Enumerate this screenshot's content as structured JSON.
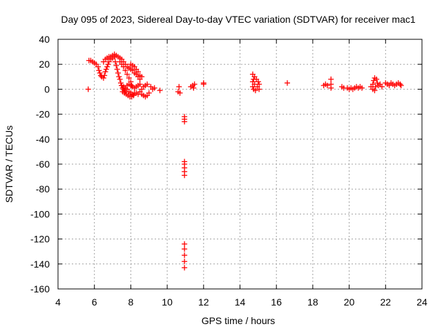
{
  "chart_data": {
    "type": "scatter",
    "title": "Day 095 of 2023, Sidereal Day-to-day VTEC variation (SDTVAR) for receiver mac1",
    "xlabel": "GPS time / hours",
    "ylabel": "SDTVAR / TECUs",
    "xlim": [
      4,
      24
    ],
    "ylim": [
      -160,
      40
    ],
    "xticks": [
      4,
      6,
      8,
      10,
      12,
      14,
      16,
      18,
      20,
      22,
      24
    ],
    "yticks": [
      40,
      20,
      0,
      -20,
      -40,
      -60,
      -80,
      -100,
      -120,
      -140,
      -160
    ],
    "xtick_labels": [
      "4",
      "6",
      "8",
      "10",
      "12",
      "14",
      "16",
      "18",
      "20",
      "22",
      "24"
    ],
    "ytick_labels": [
      "40",
      "20",
      "0",
      "-20",
      "-40",
      "-60",
      "-80",
      "-100",
      "-120",
      "-140",
      "-160"
    ],
    "grid": true,
    "marker": "+",
    "color": "#ff0000",
    "series": [
      {
        "name": "SDTVAR",
        "points": [
          [
            5.66,
            0
          ],
          [
            5.7,
            23
          ],
          [
            5.8,
            23
          ],
          [
            5.9,
            22
          ],
          [
            6.0,
            21
          ],
          [
            6.1,
            20
          ],
          [
            6.2,
            18
          ],
          [
            6.25,
            15
          ],
          [
            6.3,
            13
          ],
          [
            6.35,
            11
          ],
          [
            6.4,
            10
          ],
          [
            6.5,
            9
          ],
          [
            6.55,
            11
          ],
          [
            6.6,
            14
          ],
          [
            6.65,
            16
          ],
          [
            6.7,
            18
          ],
          [
            6.75,
            20
          ],
          [
            6.8,
            22
          ],
          [
            6.9,
            24
          ],
          [
            7.0,
            25
          ],
          [
            7.1,
            26
          ],
          [
            7.15,
            22
          ],
          [
            7.2,
            19
          ],
          [
            7.25,
            16
          ],
          [
            7.3,
            13
          ],
          [
            7.35,
            10
          ],
          [
            7.4,
            8
          ],
          [
            7.45,
            5
          ],
          [
            7.5,
            3
          ],
          [
            7.55,
            1
          ],
          [
            7.6,
            0
          ],
          [
            7.65,
            -1
          ],
          [
            7.7,
            -2
          ],
          [
            6.5,
            22
          ],
          [
            6.6,
            24
          ],
          [
            6.7,
            25
          ],
          [
            6.8,
            26
          ],
          [
            6.9,
            26
          ],
          [
            7.0,
            27
          ],
          [
            7.1,
            28
          ],
          [
            7.2,
            27
          ],
          [
            7.3,
            26
          ],
          [
            7.4,
            25
          ],
          [
            7.5,
            24
          ],
          [
            7.6,
            22
          ],
          [
            7.7,
            20
          ],
          [
            7.8,
            18
          ],
          [
            7.9,
            17
          ],
          [
            8.0,
            16
          ],
          [
            8.1,
            15
          ],
          [
            8.2,
            13
          ],
          [
            8.3,
            12
          ],
          [
            8.4,
            10
          ],
          [
            8.5,
            8
          ],
          [
            7.4,
            22
          ],
          [
            7.5,
            20
          ],
          [
            7.6,
            18
          ],
          [
            7.7,
            15
          ],
          [
            7.8,
            12
          ],
          [
            7.9,
            9
          ],
          [
            8.0,
            6
          ],
          [
            8.05,
            3
          ],
          [
            8.0,
            20
          ],
          [
            8.1,
            19
          ],
          [
            8.2,
            18
          ],
          [
            8.3,
            16
          ],
          [
            8.4,
            14
          ],
          [
            8.5,
            11
          ],
          [
            8.6,
            10
          ],
          [
            7.5,
            3
          ],
          [
            7.6,
            2
          ],
          [
            7.7,
            1
          ],
          [
            7.8,
            0
          ],
          [
            7.9,
            -2
          ],
          [
            8.0,
            -3
          ],
          [
            8.1,
            -4
          ],
          [
            8.2,
            -3
          ],
          [
            7.55,
            -2
          ],
          [
            7.65,
            -3
          ],
          [
            7.75,
            -4
          ],
          [
            7.85,
            -5
          ],
          [
            7.95,
            -6
          ],
          [
            8.05,
            -6
          ],
          [
            8.15,
            -5
          ],
          [
            7.8,
            3
          ],
          [
            7.9,
            4
          ],
          [
            8.0,
            3
          ],
          [
            8.1,
            2
          ],
          [
            8.2,
            1
          ],
          [
            8.3,
            2
          ],
          [
            8.4,
            3
          ],
          [
            8.5,
            4
          ],
          [
            8.3,
            -3
          ],
          [
            8.4,
            -4
          ],
          [
            8.5,
            -2
          ],
          [
            8.6,
            0
          ],
          [
            8.7,
            2
          ],
          [
            8.8,
            3
          ],
          [
            8.9,
            4
          ],
          [
            8.6,
            -4
          ],
          [
            8.7,
            -5
          ],
          [
            8.8,
            -6
          ],
          [
            8.9,
            -5
          ],
          [
            9.0,
            -3
          ],
          [
            9.1,
            2
          ],
          [
            9.2,
            0
          ],
          [
            9.3,
            1
          ],
          [
            9.6,
            -1
          ],
          [
            10.6,
            -2
          ],
          [
            10.65,
            2
          ],
          [
            10.7,
            -3
          ],
          [
            10.95,
            -22
          ],
          [
            10.95,
            -24
          ],
          [
            10.95,
            -26
          ],
          [
            10.95,
            -58
          ],
          [
            10.95,
            -60
          ],
          [
            10.95,
            -63
          ],
          [
            10.95,
            -66
          ],
          [
            10.95,
            -69
          ],
          [
            10.95,
            -124
          ],
          [
            10.95,
            -128
          ],
          [
            10.95,
            -133
          ],
          [
            10.95,
            -138
          ],
          [
            10.95,
            -143
          ],
          [
            11.3,
            2
          ],
          [
            11.4,
            3
          ],
          [
            11.5,
            4
          ],
          [
            11.45,
            1
          ],
          [
            12.0,
            4
          ],
          [
            12.0,
            5
          ],
          [
            14.7,
            12
          ],
          [
            14.8,
            10
          ],
          [
            14.75,
            8
          ],
          [
            14.7,
            6
          ],
          [
            14.8,
            4
          ],
          [
            14.7,
            2
          ],
          [
            14.75,
            0
          ],
          [
            14.9,
            8
          ],
          [
            15.0,
            6
          ],
          [
            15.05,
            4
          ],
          [
            14.95,
            2
          ],
          [
            15.05,
            0
          ],
          [
            14.85,
            -1
          ],
          [
            16.6,
            5
          ],
          [
            18.6,
            3
          ],
          [
            18.7,
            4
          ],
          [
            18.8,
            3
          ],
          [
            19.0,
            8
          ],
          [
            19.0,
            4
          ],
          [
            19.0,
            1
          ],
          [
            19.6,
            2
          ],
          [
            19.7,
            1
          ],
          [
            19.9,
            1
          ],
          [
            20.0,
            0
          ],
          [
            20.1,
            1
          ],
          [
            20.2,
            0
          ],
          [
            20.3,
            1
          ],
          [
            20.4,
            2
          ],
          [
            20.5,
            1
          ],
          [
            20.6,
            2
          ],
          [
            20.7,
            1
          ],
          [
            21.2,
            2
          ],
          [
            21.3,
            4
          ],
          [
            21.35,
            7
          ],
          [
            21.4,
            9
          ],
          [
            21.5,
            8
          ],
          [
            21.55,
            5
          ],
          [
            21.45,
            2
          ],
          [
            21.4,
            -1
          ],
          [
            21.3,
            0
          ],
          [
            21.6,
            3
          ],
          [
            21.7,
            4
          ],
          [
            21.8,
            2
          ],
          [
            22.0,
            5
          ],
          [
            22.1,
            4
          ],
          [
            22.2,
            3
          ],
          [
            22.3,
            5
          ],
          [
            22.4,
            4
          ],
          [
            22.5,
            3
          ],
          [
            22.6,
            4
          ],
          [
            22.7,
            5
          ],
          [
            22.8,
            4
          ],
          [
            22.85,
            3
          ]
        ]
      }
    ]
  }
}
